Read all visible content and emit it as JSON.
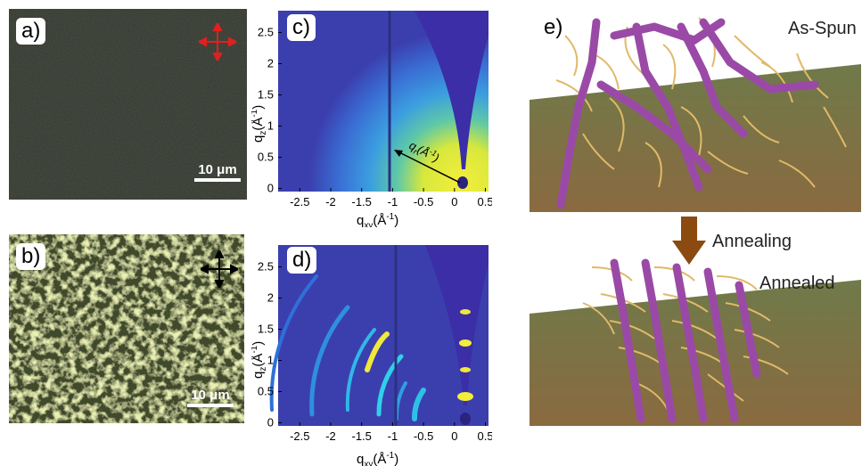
{
  "panels": {
    "a": {
      "label": "a)",
      "scale": "10 μm"
    },
    "b": {
      "label": "b)",
      "scale": "10 μm"
    },
    "c": {
      "label": "c)",
      "qr_label": "q",
      "qr_sub": "r",
      "qr_unit": "(Å",
      "qr_exp": "-1",
      "qr_close": ")"
    },
    "d": {
      "label": "d)"
    },
    "e": {
      "label": "e)",
      "top_caption": "As-Spun",
      "middle_caption": "Annealing",
      "bottom_caption": "Annealed"
    }
  },
  "axes": {
    "x_ticks": [
      "-2.5",
      "-2",
      "-1.5",
      "-1",
      "-0.5",
      "0",
      "0.5"
    ],
    "y_ticks": [
      "0",
      "0.5",
      "1",
      "1.5",
      "2",
      "2.5"
    ],
    "x_title": {
      "main": "q",
      "sub": "xy",
      "unit": "(Å",
      "exp": "-1",
      "close": ")"
    },
    "y_title": {
      "main": "q",
      "sub": "z",
      "unit": "(Å",
      "exp": "-1",
      "close": ")"
    }
  },
  "colors": {
    "giwaxs_bg": "#3b34a8",
    "film_dark": "#2c3128",
    "film_bright": "#c4d46a",
    "arrow_brown": "#8b4a10",
    "polymer_purple": "#9a4aa6",
    "sidechain_tan": "#e0b969"
  },
  "icons": {
    "polarizer_crossed_red": "crossed-arrows-icon",
    "polarizer_crossed_black": "crossed-arrows-icon"
  }
}
